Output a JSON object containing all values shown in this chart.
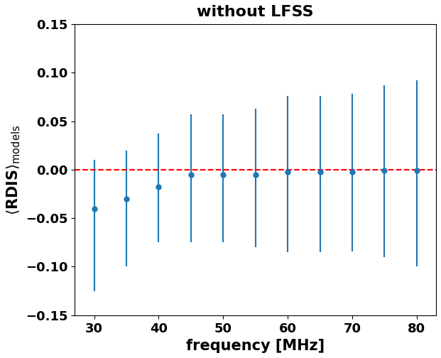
{
  "title": "without LFSS",
  "xlabel": "frequency [MHz]",
  "x": [
    30,
    35,
    40,
    45,
    50,
    55,
    60,
    65,
    70,
    75,
    80
  ],
  "y": [
    -0.04,
    -0.03,
    -0.018,
    -0.005,
    -0.005,
    -0.005,
    -0.002,
    -0.002,
    -0.002,
    -0.001,
    -0.001
  ],
  "err_low": [
    0.085,
    0.07,
    0.057,
    0.07,
    0.07,
    0.075,
    0.083,
    0.083,
    0.082,
    0.089,
    0.099
  ],
  "err_high": [
    0.05,
    0.05,
    0.055,
    0.062,
    0.062,
    0.068,
    0.078,
    0.078,
    0.08,
    0.088,
    0.093
  ],
  "point_color": "#1f77b4",
  "line_color": "#1f77b4",
  "ref_line_color": "red",
  "ref_line_style": "--",
  "ref_line_y": 0.0,
  "xlim": [
    27,
    83
  ],
  "ylim": [
    -0.15,
    0.15
  ],
  "xticks": [
    30,
    40,
    50,
    60,
    70,
    80
  ],
  "yticks": [
    -0.15,
    -0.1,
    -0.05,
    0.0,
    0.05,
    0.1,
    0.15
  ],
  "title_fontsize": 16,
  "label_fontsize": 15,
  "tick_fontsize": 13
}
